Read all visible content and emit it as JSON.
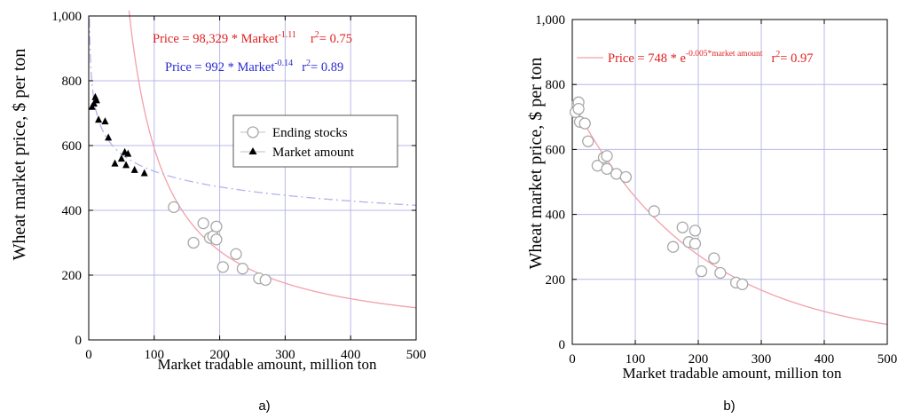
{
  "chart_data": [
    {
      "type": "scatter",
      "panel_label": "a)",
      "xlabel": "Market tradable amount, million ton",
      "ylabel": "Wheat market price, $ per ton",
      "xlim": [
        0,
        500
      ],
      "ylim": [
        0,
        1000
      ],
      "x_ticks": [
        0,
        100,
        200,
        300,
        400,
        500
      ],
      "y_ticks": [
        0,
        200,
        400,
        600,
        800,
        1000
      ],
      "x_tick_labels": [
        "0",
        "100",
        "200",
        "300",
        "400",
        "500"
      ],
      "y_tick_labels": [
        "0",
        "200",
        "400",
        "600",
        "800",
        "1,000"
      ],
      "grid": true,
      "legend_position": "center-right",
      "series": [
        {
          "name": "Ending stocks",
          "marker": "open-circle",
          "color": "#a8a8a8",
          "points": [
            [
              130,
              410
            ],
            [
              160,
              300
            ],
            [
              175,
              360
            ],
            [
              185,
              315
            ],
            [
              190,
              320
            ],
            [
              195,
              350
            ],
            [
              195,
              310
            ],
            [
              205,
              225
            ],
            [
              225,
              265
            ],
            [
              235,
              220
            ],
            [
              260,
              190
            ],
            [
              270,
              185
            ]
          ]
        },
        {
          "name": "Market amount",
          "marker": "filled-triangle",
          "color": "#000000",
          "points": [
            [
              5,
              720
            ],
            [
              8,
              730
            ],
            [
              10,
              750
            ],
            [
              12,
              740
            ],
            [
              15,
              680
            ],
            [
              25,
              675
            ],
            [
              30,
              625
            ],
            [
              40,
              545
            ],
            [
              50,
              560
            ],
            [
              55,
              580
            ],
            [
              57,
              540
            ],
            [
              60,
              575
            ],
            [
              70,
              525
            ],
            [
              85,
              515
            ]
          ]
        }
      ],
      "fits": [
        {
          "equation_prefix": "Price = 98,329 * Market",
          "exponent": "-1.11",
          "r2_label": "r",
          "r2_exp": "2",
          "r2_value": "= 0.75",
          "color": "#e02020",
          "line_color": "#f2a0a8",
          "style": "solid",
          "model": "power",
          "a": 98329,
          "b": -1.11
        },
        {
          "equation_prefix": "Price = 992 * Market",
          "exponent": "-0.14",
          "r2_label": "r",
          "r2_exp": "2",
          "r2_value": "= 0.89",
          "color": "#2a2ad0",
          "line_color": "#b4b4ec",
          "style": "dashdot",
          "model": "power",
          "a": 992,
          "b": -0.14
        }
      ]
    },
    {
      "type": "scatter",
      "panel_label": "b)",
      "xlabel": "Market tradable amount, million ton",
      "ylabel": "Wheat market price, $ per ton",
      "xlim": [
        0,
        500
      ],
      "ylim": [
        0,
        1000
      ],
      "x_ticks": [
        0,
        100,
        200,
        300,
        400,
        500
      ],
      "y_ticks": [
        0,
        200,
        400,
        600,
        800,
        1000
      ],
      "x_tick_labels": [
        "0",
        "100",
        "200",
        "300",
        "400",
        "500"
      ],
      "y_tick_labels": [
        "0",
        "200",
        "400",
        "600",
        "800",
        "1,000"
      ],
      "grid": true,
      "series": [
        {
          "marker": "open-circle",
          "color": "#a8a8a8",
          "points": [
            [
              5,
              715
            ],
            [
              8,
              740
            ],
            [
              10,
              745
            ],
            [
              10,
              725
            ],
            [
              12,
              685
            ],
            [
              20,
              680
            ],
            [
              25,
              625
            ],
            [
              40,
              550
            ],
            [
              50,
              575
            ],
            [
              55,
              580
            ],
            [
              55,
              540
            ],
            [
              70,
              525
            ],
            [
              85,
              515
            ],
            [
              130,
              410
            ],
            [
              160,
              300
            ],
            [
              175,
              360
            ],
            [
              185,
              315
            ],
            [
              195,
              350
            ],
            [
              195,
              310
            ],
            [
              205,
              225
            ],
            [
              225,
              265
            ],
            [
              235,
              220
            ],
            [
              260,
              190
            ],
            [
              270,
              185
            ]
          ]
        }
      ],
      "fits": [
        {
          "equation_prefix": "Price = 748 * e",
          "exponent": "-0.005*market amount",
          "r2_label": "r",
          "r2_exp": "2",
          "r2_value": "= 0.97",
          "color": "#e02020",
          "line_color": "#f2a0a8",
          "style": "solid",
          "model": "exponential",
          "a": 748,
          "b": -0.005
        }
      ]
    }
  ]
}
